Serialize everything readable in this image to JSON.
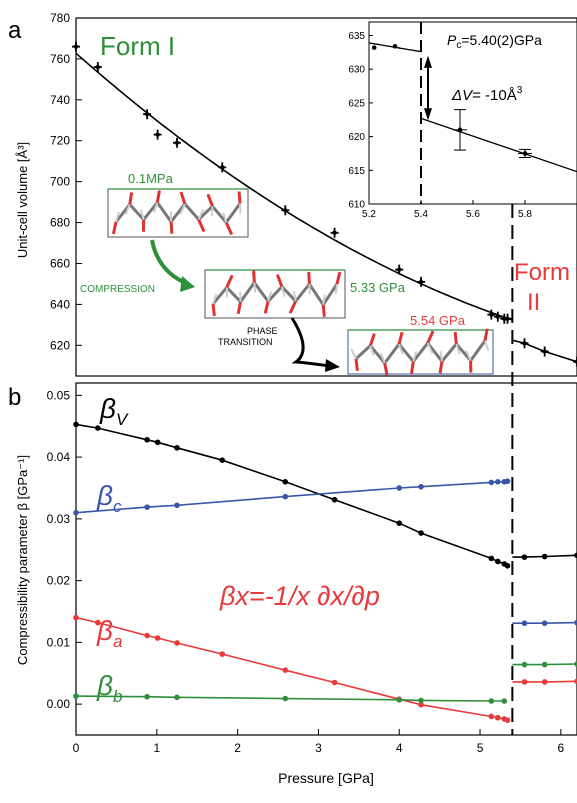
{
  "chart_data": [
    {
      "panel": "a",
      "type": "scatter",
      "ylabel": "Unit-cell volume [Å³]",
      "xlim": [
        0,
        6.2
      ],
      "ylim": [
        605,
        780
      ],
      "yticks": [
        620,
        640,
        660,
        680,
        700,
        720,
        740,
        760,
        780
      ],
      "annotations": {
        "form1": "Form I",
        "form2_line1": "Form",
        "form2_line2": "II",
        "p1": "0.1MPa",
        "p2": "5.33 GPa",
        "p3": "5.54 GPa",
        "compression": "COMPRESSION",
        "phase1": "PHASE",
        "phase2": "TRANSITION"
      },
      "series": [
        {
          "phase": "Form I",
          "points": [
            [
              0.0,
              766
            ],
            [
              0.27,
              756
            ],
            [
              0.88,
              733
            ],
            [
              1.01,
              723
            ],
            [
              1.25,
              719
            ],
            [
              1.81,
              707
            ],
            [
              2.59,
              686
            ],
            [
              3.2,
              675
            ],
            [
              4.0,
              657
            ],
            [
              4.27,
              651
            ],
            [
              5.14,
              635
            ],
            [
              5.22,
              634
            ],
            [
              5.3,
              633
            ],
            [
              5.34,
              633
            ]
          ]
        },
        {
          "phase": "Form II",
          "points": [
            [
              5.55,
              621
            ],
            [
              5.8,
              617
            ],
            [
              6.2,
              612
            ]
          ]
        }
      ],
      "transition_pressure": 5.4,
      "inset": {
        "xlim": [
          5.2,
          6.0
        ],
        "ylim": [
          610,
          637
        ],
        "xticks": [
          "5.2",
          "5.4",
          "5.6",
          "5.8"
        ],
        "yticks": [
          "610",
          "615",
          "620",
          "625",
          "630",
          "635"
        ],
        "pc_label_p": "P",
        "pc_label_c": "c",
        "pc_label_value": "=5.40(2)GPa",
        "dv_label_delta": "Δ",
        "dv_label_v": "V",
        "dv_label_value": "= -10Å",
        "dv_label_unit": "3",
        "points": [
          [
            5.22,
            633.2
          ],
          [
            5.3,
            633.4
          ],
          [
            5.55,
            621.0
          ],
          [
            5.8,
            617.5
          ]
        ],
        "error_bars": [
          [
            5.55,
            3.0
          ],
          [
            5.8,
            0.6
          ]
        ]
      }
    },
    {
      "panel": "b",
      "type": "line",
      "xlabel": "Pressure [GPa]",
      "ylabel": "Compressibility parameter β [GPa⁻¹]",
      "xlim": [
        0,
        6.2
      ],
      "ylim": [
        -0.005,
        0.052
      ],
      "xticks": [
        "0",
        "1",
        "2",
        "3",
        "4",
        "5",
        "6"
      ],
      "yticks": [
        "0.00",
        "0.01",
        "0.02",
        "0.03",
        "0.04",
        "0.05"
      ],
      "formula": "βx=-1/x ∂x/∂p",
      "series": [
        {
          "name_symbol": "β",
          "name_sub": "V",
          "color": "#000000",
          "points": [
            [
              0.0,
              0.0453
            ],
            [
              0.27,
              0.0447
            ],
            [
              0.88,
              0.0428
            ],
            [
              1.01,
              0.0424
            ],
            [
              1.25,
              0.0415
            ],
            [
              1.81,
              0.0395
            ],
            [
              2.59,
              0.036
            ],
            [
              3.2,
              0.0331
            ],
            [
              4.0,
              0.0293
            ],
            [
              4.27,
              0.0277
            ],
            [
              5.14,
              0.0236
            ],
            [
              5.22,
              0.0231
            ],
            [
              5.3,
              0.0227
            ],
            [
              5.34,
              0.0224
            ]
          ],
          "points_ii": [
            [
              5.55,
              0.0238
            ],
            [
              5.8,
              0.0239
            ],
            [
              6.2,
              0.0241
            ]
          ]
        },
        {
          "name_symbol": "β",
          "name_sub": "c",
          "color": "#3a56ab",
          "points": [
            [
              0.0,
              0.031
            ],
            [
              0.88,
              0.0319
            ],
            [
              1.25,
              0.0322
            ],
            [
              2.59,
              0.0336
            ],
            [
              4.0,
              0.035
            ],
            [
              4.27,
              0.0352
            ],
            [
              5.14,
              0.0359
            ],
            [
              5.22,
              0.036
            ],
            [
              5.3,
              0.036
            ],
            [
              5.34,
              0.0361
            ]
          ],
          "points_ii": [
            [
              5.55,
              0.0131
            ],
            [
              5.8,
              0.0131
            ],
            [
              6.2,
              0.0132
            ]
          ]
        },
        {
          "name_symbol": "β",
          "name_sub": "a",
          "color": "#e83a3a",
          "points": [
            [
              0.0,
              0.014
            ],
            [
              0.27,
              0.0132
            ],
            [
              0.88,
              0.0111
            ],
            [
              1.01,
              0.0107
            ],
            [
              1.25,
              0.0099
            ],
            [
              1.81,
              0.0081
            ],
            [
              2.59,
              0.0055
            ],
            [
              3.2,
              0.0035
            ],
            [
              4.0,
              0.0008
            ],
            [
              4.27,
              -0.0001
            ],
            [
              5.14,
              -0.002
            ],
            [
              5.22,
              -0.0022
            ],
            [
              5.3,
              -0.0024
            ],
            [
              5.34,
              -0.0026
            ]
          ],
          "points_ii": [
            [
              5.55,
              0.0036
            ],
            [
              5.8,
              0.0036
            ],
            [
              6.2,
              0.0037
            ]
          ]
        },
        {
          "name_symbol": "β",
          "name_sub": "b",
          "color": "#2f8f3a",
          "points": [
            [
              0.0,
              0.0013
            ],
            [
              0.88,
              0.0012
            ],
            [
              1.25,
              0.0011
            ],
            [
              2.59,
              0.0009
            ],
            [
              4.0,
              0.0007
            ],
            [
              4.27,
              0.0006
            ],
            [
              5.14,
              0.0005
            ],
            [
              5.3,
              0.0005
            ]
          ],
          "points_ii": [
            [
              5.55,
              0.0064
            ],
            [
              5.8,
              0.0064
            ],
            [
              6.2,
              0.0065
            ]
          ]
        }
      ]
    }
  ]
}
